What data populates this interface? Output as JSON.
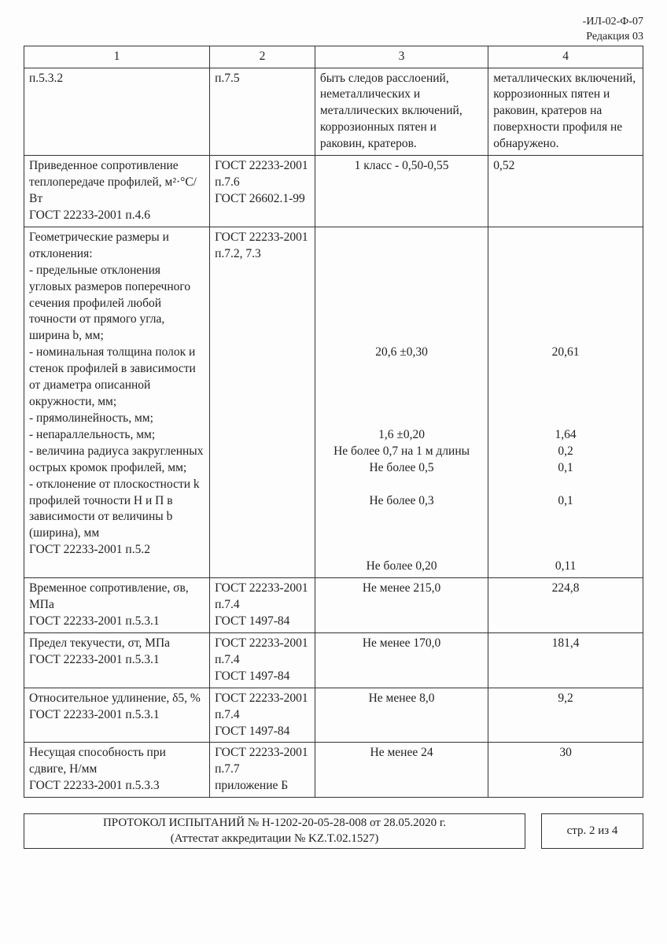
{
  "header": {
    "code": "-ИЛ-02-Ф-07",
    "revision": "Редакция 03"
  },
  "columns": {
    "c1": "1",
    "c2": "2",
    "c3": "3",
    "c4": "4"
  },
  "rows": [
    {
      "c1": "п.5.3.2",
      "c2": "п.7.5",
      "c3": "быть следов расслоений, неметаллических и металлических включений, коррозионных пятен и раковин, кратеров.",
      "c4": "металлических включений, коррозионных пятен и раковин, кратеров на поверхности профиля не обнаружено."
    },
    {
      "c1": "Приведенное сопротивление теплопередаче профилей, м²·°С/Вт\nГОСТ 22233-2001 п.4.6",
      "c2": "ГОСТ 22233-2001\nп.7.6\nГОСТ 26602.1-99",
      "c3": "1 класс - 0,50-0,55",
      "c4": "0,52",
      "c3c": true
    },
    {
      "c1": "Геометрические размеры и отклонения:\n- предельные отклонения угловых размеров поперечного сечения профилей любой точности от прямого угла, ширина b, мм;\n- номинальная толщина полок и стенок профилей в зависимости от диаметра описанной окружности, мм;\n- прямолинейность, мм;\n\n- непараллельность, мм;\n- величина радиуса закругленных острых кромок профилей, мм;\n- отклонение от плоскостности k профилей точности Н и П в зависимости от величины b (ширина), мм\nГОСТ 22233-2001 п.5.2",
      "c2": "ГОСТ 22233-2001\nп.7.2, 7.3",
      "c3_multi": [
        {
          "t": "",
          "pad": 7
        },
        {
          "t": "20,6 ±0,30",
          "pad": 0
        },
        {
          "t": "",
          "pad": 4
        },
        {
          "t": "1,6 ±0,20",
          "pad": 0
        },
        {
          "t": "Не более 0,7 на 1 м длины",
          "pad": 0
        },
        {
          "t": "Не более 0,5",
          "pad": 0
        },
        {
          "t": "",
          "pad": 1
        },
        {
          "t": "Не более 0,3",
          "pad": 0
        },
        {
          "t": "",
          "pad": 3
        },
        {
          "t": "Не более 0,20",
          "pad": 0
        }
      ],
      "c4_multi": [
        {
          "t": "",
          "pad": 7
        },
        {
          "t": "20,61",
          "pad": 0
        },
        {
          "t": "",
          "pad": 4
        },
        {
          "t": "1,64",
          "pad": 0
        },
        {
          "t": "0,2",
          "pad": 0
        },
        {
          "t": "",
          "pad": 0
        },
        {
          "t": "0,1",
          "pad": 0
        },
        {
          "t": "",
          "pad": 1
        },
        {
          "t": "0,1",
          "pad": 0
        },
        {
          "t": "",
          "pad": 3
        },
        {
          "t": "0,11",
          "pad": 0
        }
      ]
    },
    {
      "c1": "Временное сопротивление, σв, МПа\nГОСТ 22233-2001 п.5.3.1",
      "c2": "ГОСТ 22233-2001\nп.7.4\nГОСТ 1497-84",
      "c3": "Не менее 215,0",
      "c4": "224,8",
      "c3c": true,
      "c4c": true
    },
    {
      "c1": "Предел текучести, σт, МПа\nГОСТ 22233-2001 п.5.3.1",
      "c2": "ГОСТ 22233-2001\nп.7.4\nГОСТ 1497-84",
      "c3": "Не менее 170,0",
      "c4": "181,4",
      "c3c": true,
      "c4c": true
    },
    {
      "c1": "Относительное удлинение, δ5, %\nГОСТ 22233-2001 п.5.3.1",
      "c2": "ГОСТ 22233-2001\nп.7.4\nГОСТ 1497-84",
      "c3": "Не менее 8,0",
      "c4": "9,2",
      "c3c": true,
      "c4c": true
    },
    {
      "c1": "Несущая способность при сдвиге, Н/мм\nГОСТ 22233-2001 п.5.3.3",
      "c2": "ГОСТ 22233-2001\nп.7.7\nприложение Б",
      "c3": "Не менее 24",
      "c4": "30",
      "c3c": true,
      "c4c": true
    }
  ],
  "footer": {
    "line1": "ПРОТОКОЛ ИСПЫТАНИЙ № Н-1202-20-05-28-008 от 28.05.2020 г.",
    "line2": "(Аттестат аккредитации № KZ.T.02.1527)",
    "page": "стр. 2 из 4"
  }
}
